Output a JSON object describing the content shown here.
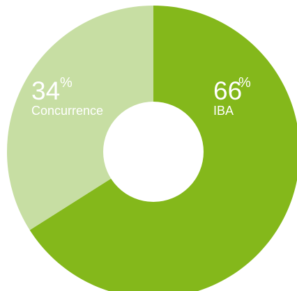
{
  "chart_data": {
    "type": "pie",
    "donut": true,
    "slices": [
      {
        "label": "IBA",
        "value": 66,
        "value_text": "66",
        "unit": "%",
        "color": "#84b81b"
      },
      {
        "label": "Concurrence",
        "value": 34,
        "value_text": "34",
        "unit": "%",
        "color": "#c7dea3"
      }
    ],
    "start": "top",
    "direction": "clockwise",
    "background": "#ffffff",
    "hole_color": "#ffffff"
  }
}
